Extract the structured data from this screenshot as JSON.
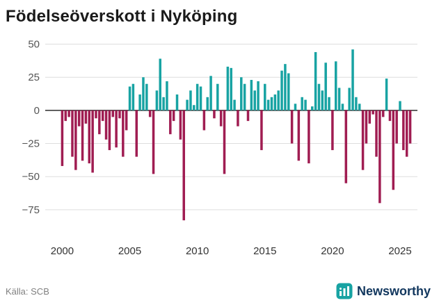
{
  "header": {
    "title": "Födelseöverskott i Nyköping"
  },
  "footer": {
    "source": "Källa: SCB",
    "brand": "Newsworthy"
  },
  "colors": {
    "positive": "#18a3a3",
    "negative": "#a01d52",
    "grid": "#dddddd",
    "zero_line": "#2b2b2b",
    "axis_text": "#555555",
    "tick_text": "#333333",
    "brand_icon": "#18a3a3",
    "brand_text": "#12375e",
    "background": "#ffffff"
  },
  "chart_data": {
    "type": "bar",
    "title": "Födelseöverskott i Nyköping",
    "source": "Källa: SCB",
    "frequency": "quarterly",
    "start_year": 2000,
    "xlabel": "",
    "ylabel": "",
    "ylim": [
      -95,
      55
    ],
    "yticks": [
      50,
      25,
      0,
      -25,
      -50,
      -75
    ],
    "xticks": [
      2000,
      2005,
      2010,
      2015,
      2020,
      2025
    ],
    "grid": true,
    "legend": "none",
    "values": [
      -42,
      -8,
      -5,
      -35,
      -45,
      -12,
      -38,
      -10,
      -40,
      -47,
      -6,
      -18,
      -8,
      -22,
      -30,
      -5,
      -28,
      -6,
      -35,
      -15,
      18,
      20,
      -35,
      12,
      25,
      20,
      -5,
      -48,
      15,
      39,
      10,
      22,
      -18,
      -8,
      12,
      -22,
      -83,
      8,
      15,
      4,
      20,
      18,
      -15,
      10,
      26,
      -6,
      20,
      -12,
      -48,
      33,
      32,
      8,
      -12,
      25,
      20,
      -8,
      23,
      15,
      22,
      -30,
      20,
      8,
      10,
      12,
      15,
      30,
      35,
      28,
      -25,
      5,
      -38,
      10,
      8,
      -40,
      3,
      44,
      20,
      15,
      36,
      10,
      -30,
      37,
      17,
      5,
      -55,
      17,
      46,
      10,
      5,
      -45,
      -25,
      -10,
      -3,
      -35,
      -70,
      -5,
      24,
      -8,
      -60,
      -25,
      7,
      -30,
      -35,
      -25
    ]
  }
}
